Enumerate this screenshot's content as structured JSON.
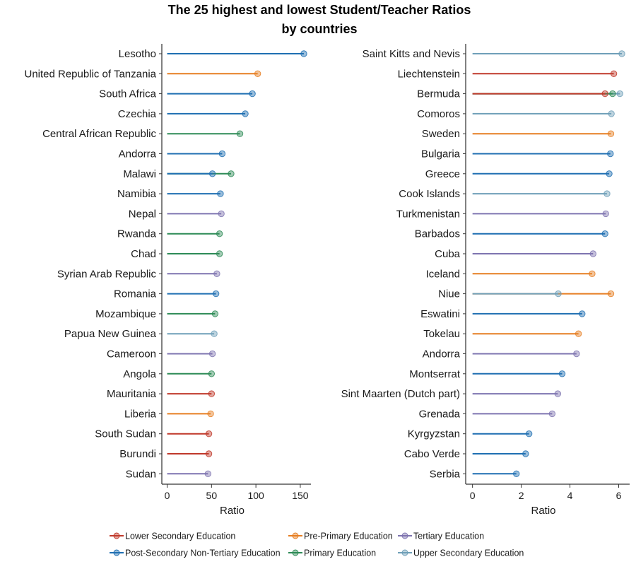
{
  "chart_data": {
    "type": "lollipop",
    "title": "The 25 highest and lowest Student/Teacher Ratios",
    "title_line2": "by countries",
    "xlabel": "Ratio",
    "categories_legend": [
      {
        "name": "Lower Secondary Education",
        "color": "#c0392b"
      },
      {
        "name": "Pre-Primary Education",
        "color": "#e67e22"
      },
      {
        "name": "Tertiary Education",
        "color": "#7e74b0"
      },
      {
        "name": "Post-Secondary Non-Tertiary Education",
        "color": "#1f6fb2"
      },
      {
        "name": "Primary Education",
        "color": "#2e8b57"
      },
      {
        "name": "Upper Secondary Education",
        "color": "#6f9fb8"
      }
    ],
    "panels": [
      {
        "name": "highest",
        "xlim": [
          -6,
          162
        ],
        "ticks": [
          0,
          50,
          100,
          150
        ],
        "tick_labels": [
          "0",
          "50",
          "100",
          "150"
        ],
        "countries": [
          {
            "country": "Lesotho",
            "points": [
              {
                "level": "Post-Secondary Non-Tertiary Education",
                "value": 154
              }
            ]
          },
          {
            "country": "United Republic of Tanzania",
            "points": [
              {
                "level": "Pre-Primary Education",
                "value": 102
              }
            ]
          },
          {
            "country": "South Africa",
            "points": [
              {
                "level": "Post-Secondary Non-Tertiary Education",
                "value": 96
              }
            ]
          },
          {
            "country": "Czechia",
            "points": [
              {
                "level": "Post-Secondary Non-Tertiary Education",
                "value": 88
              }
            ]
          },
          {
            "country": "Central African Republic",
            "points": [
              {
                "level": "Primary Education",
                "value": 82
              }
            ]
          },
          {
            "country": "Andorra",
            "points": [
              {
                "level": "Post-Secondary Non-Tertiary Education",
                "value": 62
              }
            ]
          },
          {
            "country": "Malawi",
            "points": [
              {
                "level": "Post-Secondary Non-Tertiary Education",
                "value": 51
              },
              {
                "level": "Primary Education",
                "value": 72
              }
            ]
          },
          {
            "country": "Namibia",
            "points": [
              {
                "level": "Post-Secondary Non-Tertiary Education",
                "value": 60
              }
            ]
          },
          {
            "country": "Nepal",
            "points": [
              {
                "level": "Tertiary Education",
                "value": 61
              }
            ]
          },
          {
            "country": "Rwanda",
            "points": [
              {
                "level": "Primary Education",
                "value": 59
              }
            ]
          },
          {
            "country": "Chad",
            "points": [
              {
                "level": "Primary Education",
                "value": 59
              }
            ]
          },
          {
            "country": "Syrian Arab Republic",
            "points": [
              {
                "level": "Tertiary Education",
                "value": 56
              }
            ]
          },
          {
            "country": "Romania",
            "points": [
              {
                "level": "Post-Secondary Non-Tertiary Education",
                "value": 55
              }
            ]
          },
          {
            "country": "Mozambique",
            "points": [
              {
                "level": "Primary Education",
                "value": 54
              }
            ]
          },
          {
            "country": "Papua New Guinea",
            "points": [
              {
                "level": "Upper Secondary Education",
                "value": 53
              }
            ]
          },
          {
            "country": "Cameroon",
            "points": [
              {
                "level": "Tertiary Education",
                "value": 51
              }
            ]
          },
          {
            "country": "Angola",
            "points": [
              {
                "level": "Primary Education",
                "value": 50
              }
            ]
          },
          {
            "country": "Mauritania",
            "points": [
              {
                "level": "Lower Secondary Education",
                "value": 50
              }
            ]
          },
          {
            "country": "Liberia",
            "points": [
              {
                "level": "Pre-Primary Education",
                "value": 49
              }
            ]
          },
          {
            "country": "South Sudan",
            "points": [
              {
                "level": "Lower Secondary Education",
                "value": 47
              }
            ]
          },
          {
            "country": "Burundi",
            "points": [
              {
                "level": "Lower Secondary Education",
                "value": 47
              }
            ]
          },
          {
            "country": "Sudan",
            "points": [
              {
                "level": "Tertiary Education",
                "value": 46
              }
            ]
          }
        ]
      },
      {
        "name": "lowest",
        "xlim": [
          -0.28,
          6.45
        ],
        "ticks": [
          0,
          2,
          4,
          6
        ],
        "tick_labels": [
          "0",
          "2",
          "4",
          "6"
        ],
        "countries": [
          {
            "country": "Saint Kitts and Nevis",
            "points": [
              {
                "level": "Upper Secondary Education",
                "value": 6.13
              }
            ]
          },
          {
            "country": "Liechtenstein",
            "points": [
              {
                "level": "Lower Secondary Education",
                "value": 5.8
              }
            ]
          },
          {
            "country": "Bermuda",
            "points": [
              {
                "level": "Lower Secondary Education",
                "value": 5.44
              },
              {
                "level": "Primary Education",
                "value": 5.75
              },
              {
                "level": "Upper Secondary Education",
                "value": 6.05
              }
            ]
          },
          {
            "country": "Comoros",
            "points": [
              {
                "level": "Upper Secondary Education",
                "value": 5.7
              }
            ]
          },
          {
            "country": "Sweden",
            "points": [
              {
                "level": "Pre-Primary Education",
                "value": 5.68
              }
            ]
          },
          {
            "country": "Bulgaria",
            "points": [
              {
                "level": "Post-Secondary Non-Tertiary Education",
                "value": 5.66
              }
            ]
          },
          {
            "country": "Greece",
            "points": [
              {
                "level": "Post-Secondary Non-Tertiary Education",
                "value": 5.61
              }
            ]
          },
          {
            "country": "Cook Islands",
            "points": [
              {
                "level": "Upper Secondary Education",
                "value": 5.52
              }
            ]
          },
          {
            "country": "Turkmenistan",
            "points": [
              {
                "level": "Tertiary Education",
                "value": 5.47
              }
            ]
          },
          {
            "country": "Barbados",
            "points": [
              {
                "level": "Post-Secondary Non-Tertiary Education",
                "value": 5.44
              }
            ]
          },
          {
            "country": "Cuba",
            "points": [
              {
                "level": "Tertiary Education",
                "value": 4.95
              }
            ]
          },
          {
            "country": "Iceland",
            "points": [
              {
                "level": "Pre-Primary Education",
                "value": 4.91
              }
            ]
          },
          {
            "country": "Niue",
            "points": [
              {
                "level": "Upper Secondary Education",
                "value": 3.52
              },
              {
                "level": "Pre-Primary Education",
                "value": 5.68
              }
            ]
          },
          {
            "country": "Eswatini",
            "points": [
              {
                "level": "Post-Secondary Non-Tertiary Education",
                "value": 4.5
              }
            ]
          },
          {
            "country": "Tokelau",
            "points": [
              {
                "level": "Pre-Primary Education",
                "value": 4.35
              }
            ]
          },
          {
            "country": "Andorra",
            "points": [
              {
                "level": "Tertiary Education",
                "value": 4.27
              }
            ]
          },
          {
            "country": "Montserrat",
            "points": [
              {
                "level": "Post-Secondary Non-Tertiary Education",
                "value": 3.68
              }
            ]
          },
          {
            "country": "Sint Maarten (Dutch part)",
            "points": [
              {
                "level": "Tertiary Education",
                "value": 3.5
              }
            ]
          },
          {
            "country": "Grenada",
            "points": [
              {
                "level": "Tertiary Education",
                "value": 3.27
              }
            ]
          },
          {
            "country": "Kyrgyzstan",
            "points": [
              {
                "level": "Post-Secondary Non-Tertiary Education",
                "value": 2.32
              }
            ]
          },
          {
            "country": "Cabo Verde",
            "points": [
              {
                "level": "Post-Secondary Non-Tertiary Education",
                "value": 2.18
              }
            ]
          },
          {
            "country": "Serbia",
            "points": [
              {
                "level": "Post-Secondary Non-Tertiary Education",
                "value": 1.8
              }
            ]
          }
        ]
      }
    ],
    "grid": false,
    "legend_position": "bottom"
  }
}
